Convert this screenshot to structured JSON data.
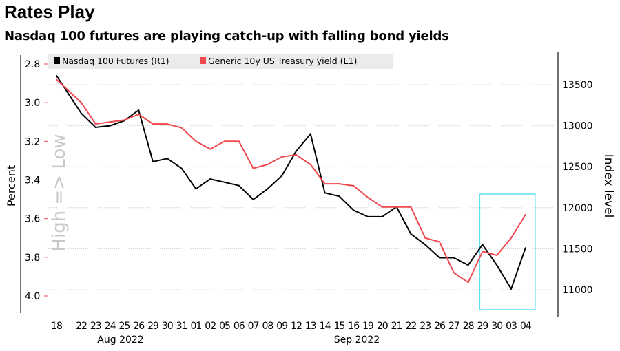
{
  "title": "Rates Play",
  "subtitle": "Nasdaq 100 futures are playing catch-up with falling bond yields",
  "chart_data": {
    "type": "line",
    "title": "Rates Play",
    "subtitle": "Nasdaq 100 futures are playing catch-up with falling bond yields",
    "x": [
      "18",
      "22",
      "23",
      "24",
      "25",
      "26",
      "29",
      "30",
      "31",
      "01",
      "02",
      "05",
      "06",
      "07",
      "08",
      "09",
      "12",
      "13",
      "14",
      "15",
      "16",
      "19",
      "20",
      "21",
      "22",
      "23",
      "26",
      "27",
      "28",
      "29",
      "30",
      "03",
      "04"
    ],
    "month_labels": [
      "Aug 2022",
      "Sep 2022"
    ],
    "ylabel_left": "Percent",
    "ylabel_left_note": "High => Low",
    "ylabel_right": "Index level",
    "yleft_ticks": [
      "2.8",
      "3.0",
      "3.2",
      "3.4",
      "3.6",
      "3.8",
      "4.0"
    ],
    "yleft_range": [
      2.8,
      4.0
    ],
    "yleft_inverted": true,
    "yright_ticks": [
      "13500",
      "13000",
      "12500",
      "12000",
      "11500",
      "11000"
    ],
    "yright_range": [
      13500,
      11000
    ],
    "grid": true,
    "legend_position": "top-left",
    "series": [
      {
        "name": "Nasdaq 100 Futures (R1)",
        "axis": "right",
        "color": "#000000",
        "values": [
          13610,
          13150,
          12980,
          13000,
          13060,
          13190,
          12560,
          12600,
          12480,
          12230,
          12350,
          12310,
          12270,
          12100,
          12230,
          12390,
          12690,
          12900,
          12180,
          12140,
          11970,
          11890,
          11890,
          12010,
          11680,
          11550,
          11390,
          11390,
          11300,
          11550,
          11300,
          11010,
          11510
        ]
      },
      {
        "name": "Generic 10y US Treasury yield (L1)",
        "axis": "left",
        "color": "#f0484e",
        "values": [
          2.88,
          3.0,
          3.11,
          3.1,
          3.09,
          3.06,
          3.11,
          3.11,
          3.13,
          3.2,
          3.24,
          3.2,
          3.2,
          3.34,
          3.32,
          3.28,
          3.27,
          3.32,
          3.42,
          3.42,
          3.43,
          3.49,
          3.54,
          3.54,
          3.54,
          3.7,
          3.72,
          3.88,
          3.93,
          3.77,
          3.79,
          3.7,
          3.58
        ]
      }
    ],
    "highlight": {
      "from": "29",
      "to": "04",
      "color": "#5ee0f0"
    }
  }
}
